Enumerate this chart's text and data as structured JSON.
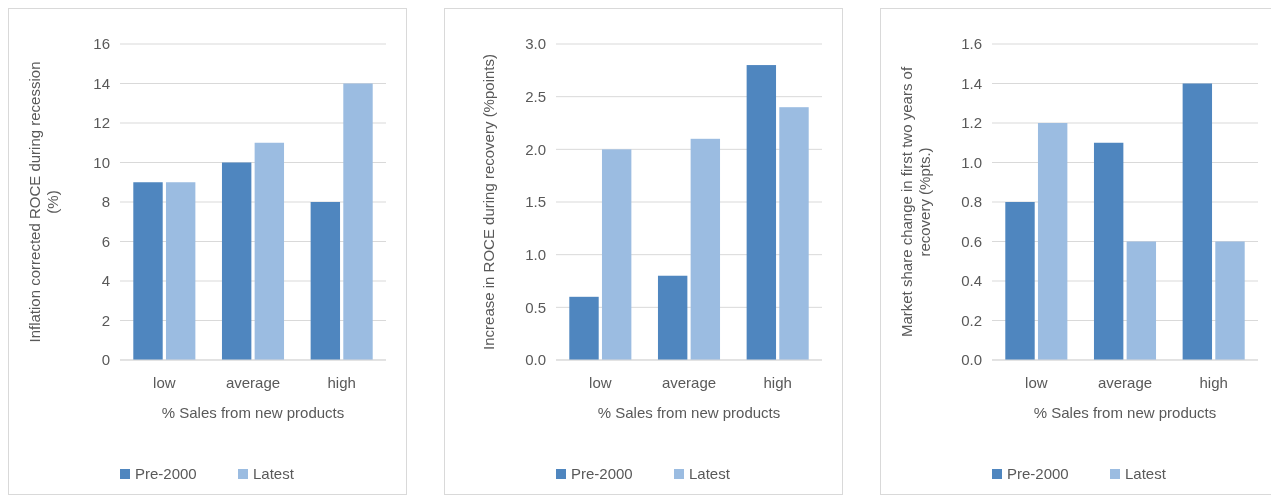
{
  "chart_data": [
    {
      "type": "bar",
      "xlabel": "% Sales from new products",
      "ylabel": "Inflation corrected ROCE during recession (%)",
      "categories": [
        "low",
        "average",
        "high"
      ],
      "series": [
        {
          "name": "Pre-2000",
          "color": "#4f86bf",
          "values": [
            9,
            10,
            8
          ]
        },
        {
          "name": "Latest",
          "color": "#9bbce1",
          "values": [
            9,
            11,
            14
          ]
        }
      ],
      "ylim": [
        0,
        16
      ],
      "yticks": [
        0,
        2,
        4,
        6,
        8,
        10,
        12,
        14,
        16
      ],
      "grid": "y",
      "legend": "bottom"
    },
    {
      "type": "bar",
      "xlabel": "% Sales from new products",
      "ylabel": "Increase in ROCE during recovery (%points)",
      "categories": [
        "low",
        "average",
        "high"
      ],
      "series": [
        {
          "name": "Pre-2000",
          "color": "#4f86bf",
          "values": [
            0.6,
            0.8,
            2.8
          ]
        },
        {
          "name": "Latest",
          "color": "#9bbce1",
          "values": [
            2.0,
            2.1,
            2.4
          ]
        }
      ],
      "ylim": [
        0,
        3
      ],
      "yticks": [
        {
          "value": 0,
          "label": "0.0"
        },
        0.5,
        {
          "value": 1,
          "label": "1.0"
        },
        1.5,
        {
          "value": 2,
          "label": "2.0"
        },
        2.5,
        {
          "value": 3,
          "label": "3.0"
        }
      ],
      "grid": "y",
      "legend": "bottom"
    },
    {
      "type": "bar",
      "xlabel": "% Sales from new products",
      "ylabel": "Market share change in first two years of recovery (%pts.)",
      "categories": [
        "low",
        "average",
        "high"
      ],
      "series": [
        {
          "name": "Pre-2000",
          "color": "#4f86bf",
          "values": [
            0.8,
            1.1,
            1.4
          ]
        },
        {
          "name": "Latest",
          "color": "#9bbce1",
          "values": [
            1.2,
            0.6,
            0.6
          ]
        }
      ],
      "ylim": [
        0,
        1.6
      ],
      "yticks": [
        {
          "value": 0,
          "label": "0.0"
        },
        0.2,
        0.4,
        0.6,
        0.8,
        {
          "value": 1,
          "label": "1.0"
        },
        1.2,
        1.4,
        1.6
      ],
      "grid": "y",
      "legend": "bottom"
    }
  ]
}
